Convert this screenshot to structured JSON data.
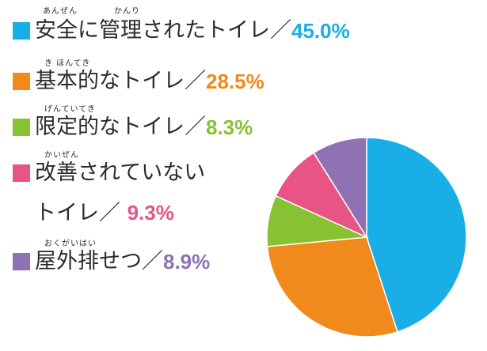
{
  "colors": {
    "safe": "#1aaee6",
    "basic": "#f08a1c",
    "limited": "#86c232",
    "unimproved": "#e85585",
    "open": "#8f72b4",
    "text": "#2b2b2b"
  },
  "legend": [
    {
      "key": "safe",
      "ruby": [
        "あんぜん",
        "かんり"
      ],
      "label": "安全に管理されたトイレ／",
      "percent": "45.0%"
    },
    {
      "key": "basic",
      "ruby": [
        "き ほんてき"
      ],
      "label": "基本的なトイレ／",
      "percent": "28.5%"
    },
    {
      "key": "limited",
      "ruby": [
        "げんていてき"
      ],
      "label": "限定的なトイレ／",
      "percent": "8.3%"
    },
    {
      "key": "unimproved",
      "ruby": [
        "かいぜん"
      ],
      "label": "改善されていない",
      "label2": "トイレ／",
      "percent": "9.3%"
    },
    {
      "key": "open",
      "ruby": [
        "おくがいはい"
      ],
      "label": "屋外排せつ／",
      "percent": "8.9%"
    }
  ],
  "chart_data": {
    "type": "pie",
    "title": "",
    "categories": [
      "安全に管理されたトイレ",
      "基本的なトイレ",
      "限定的なトイレ",
      "改善されていないトイレ",
      "屋外排せつ"
    ],
    "values": [
      45.0,
      28.5,
      8.3,
      9.3,
      8.9
    ],
    "unit": "%",
    "colors": [
      "#1aaee6",
      "#f08a1c",
      "#86c232",
      "#e85585",
      "#8f72b4"
    ],
    "start_angle": "12 o'clock",
    "direction": "clockwise",
    "legend_position": "left"
  }
}
